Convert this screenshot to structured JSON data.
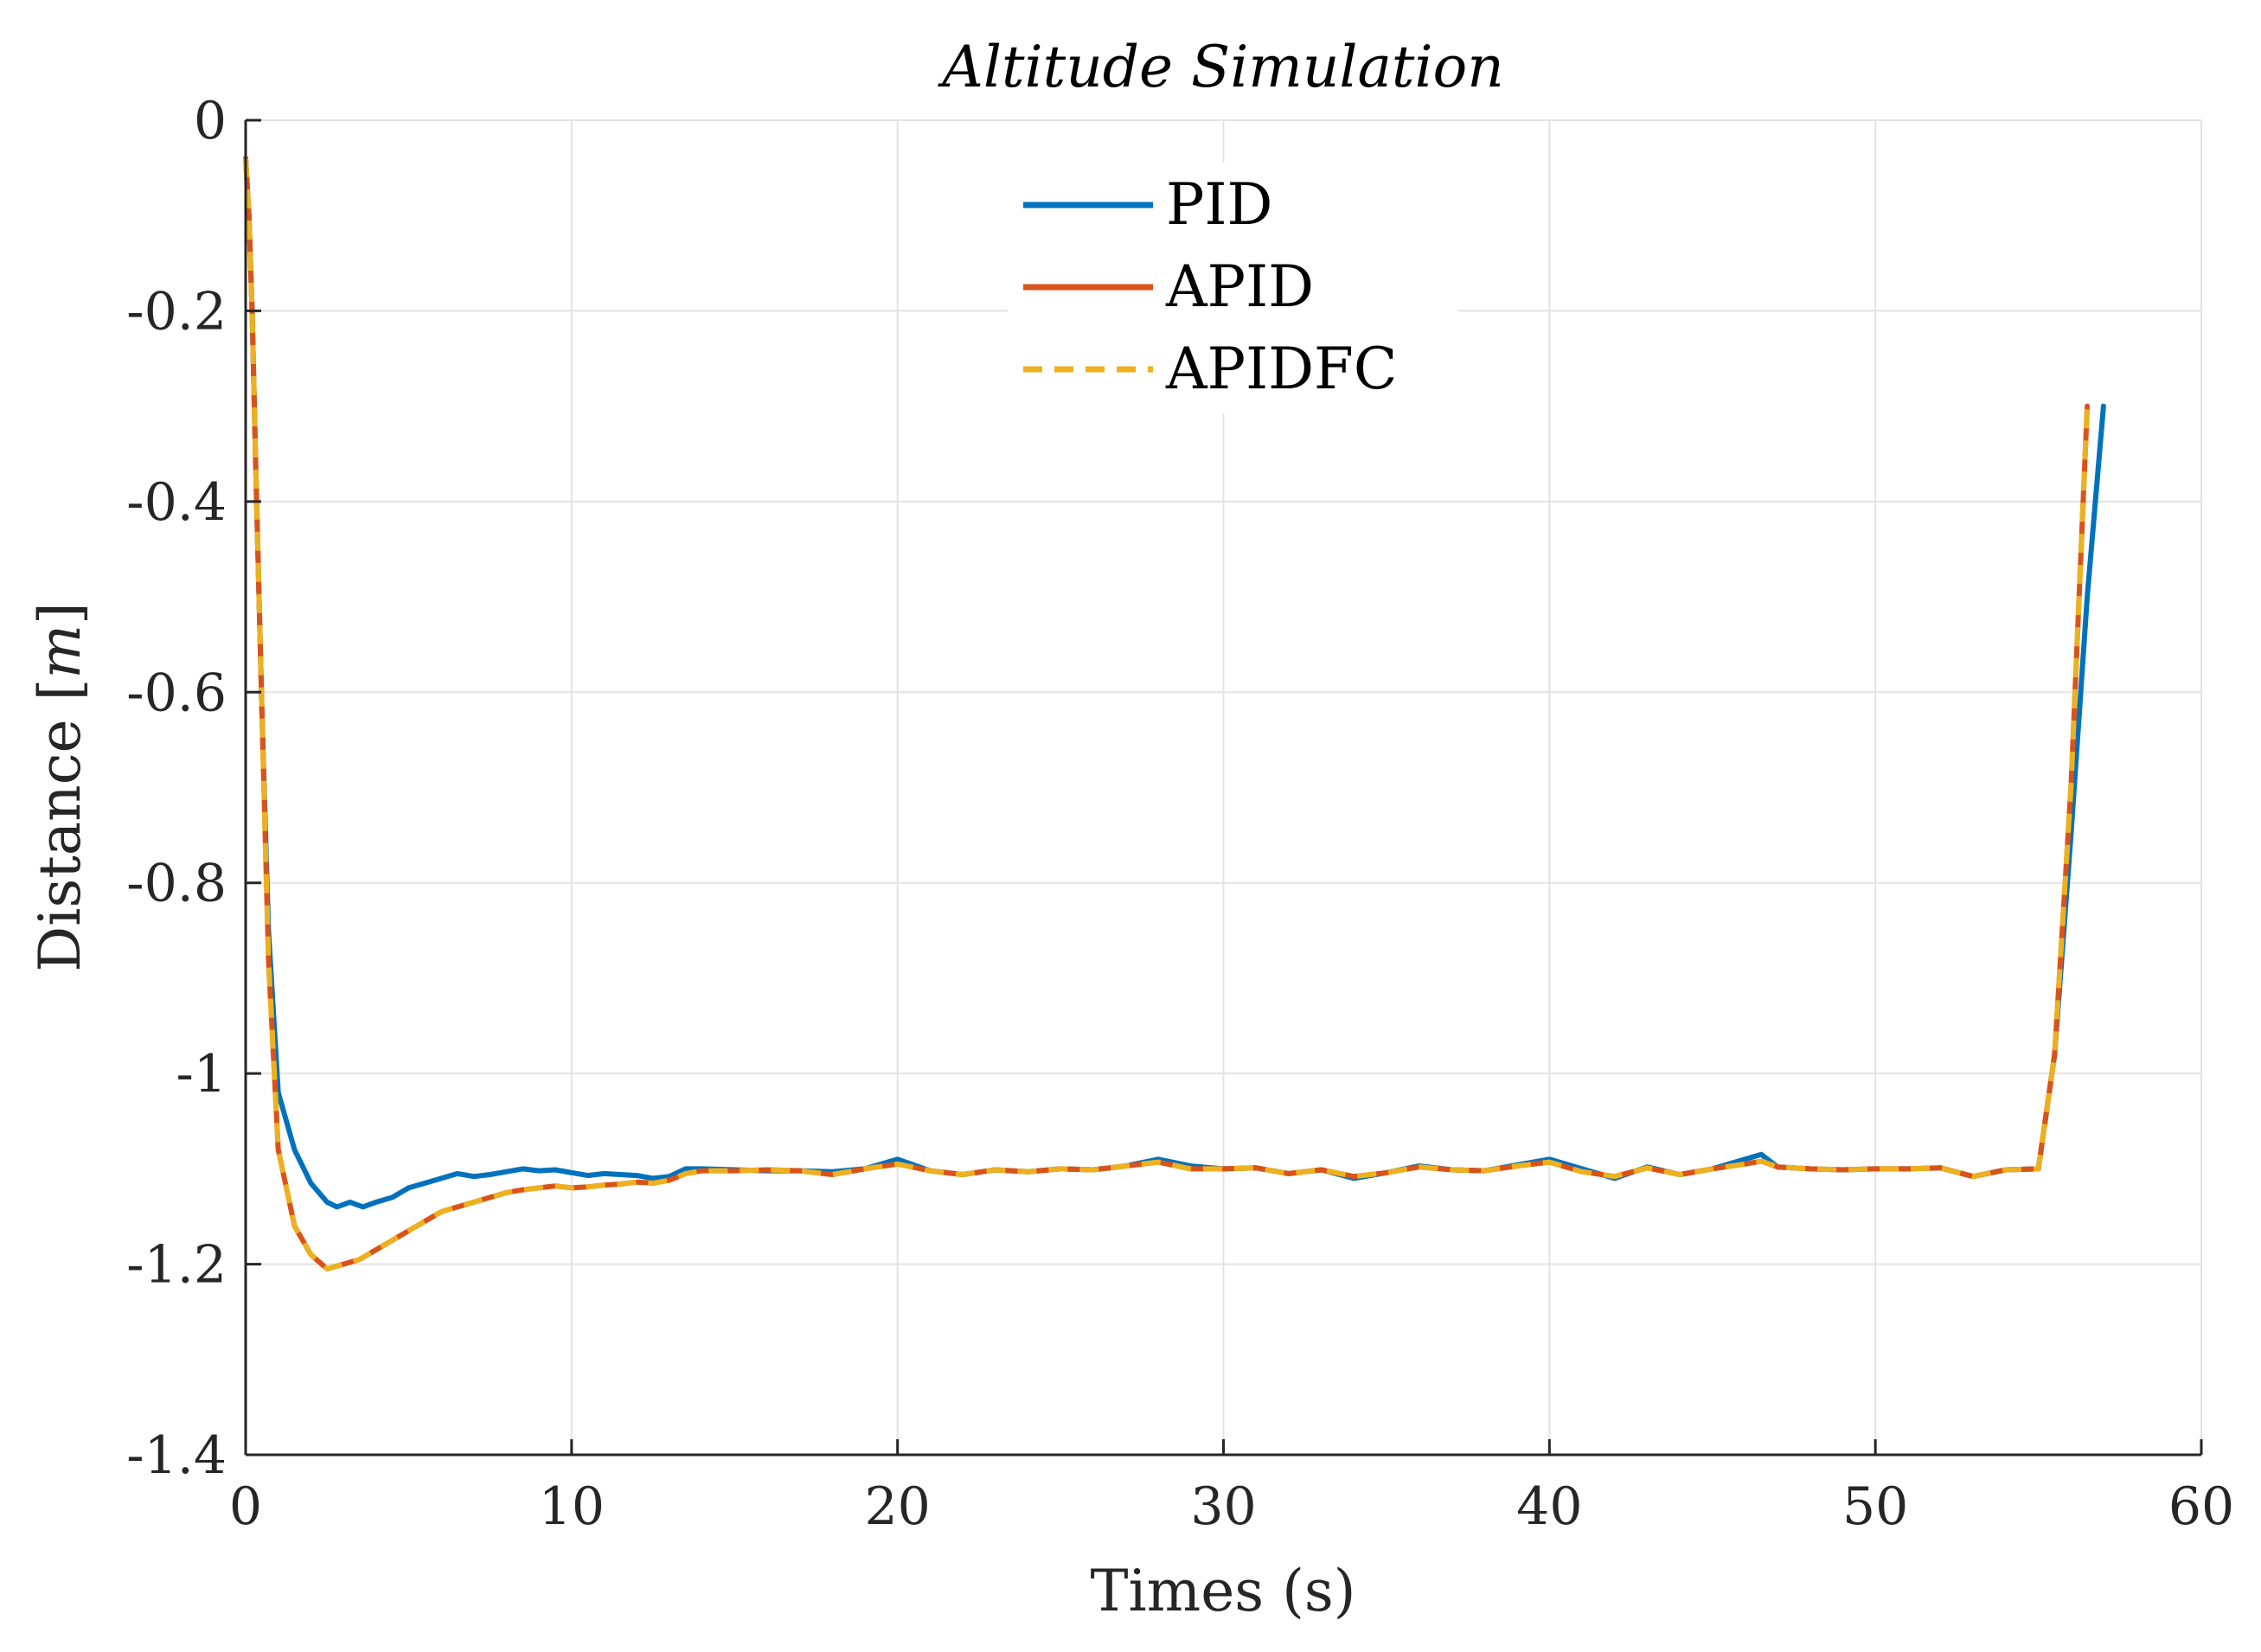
{
  "chart_data": {
    "type": "line",
    "title": "Altitude Simulation",
    "xlabel": "Times (s)",
    "ylabel_prefix": "Distance [",
    "ylabel_unit": "m",
    "ylabel_suffix": "]",
    "xlim": [
      0,
      60
    ],
    "ylim": [
      -1.4,
      0
    ],
    "xticks": [
      0,
      10,
      20,
      30,
      40,
      50,
      60
    ],
    "xtick_labels": [
      "0",
      "10",
      "20",
      "30",
      "40",
      "50",
      "60"
    ],
    "yticks": [
      0,
      -0.2,
      -0.4,
      -0.6,
      -0.8,
      -1,
      -1.2,
      -1.4
    ],
    "ytick_labels": [
      "0",
      "-0.2",
      "-0.4",
      "-0.6",
      "-0.8",
      "-1",
      "-1.2",
      "-1.4"
    ],
    "grid": true,
    "legend_position": "top-center",
    "series": [
      {
        "name": "PID",
        "color": "#0072BD",
        "dash": "solid",
        "x": [
          0.0,
          0.1,
          0.2,
          0.3,
          0.5,
          0.7,
          1.0,
          1.5,
          2.0,
          2.5,
          2.8,
          3.2,
          3.6,
          4.0,
          4.5,
          5.0,
          5.5,
          6.0,
          6.5,
          7.0,
          7.5,
          8.0,
          8.5,
          9.0,
          9.5,
          10.0,
          10.5,
          11.0,
          11.5,
          12.0,
          12.5,
          13.0,
          13.5,
          14.0,
          15.0,
          16.0,
          17.0,
          18.0,
          19.0,
          20.0,
          21.0,
          22.0,
          23.0,
          24.0,
          25.0,
          26.0,
          27.0,
          28.0,
          29.0,
          30.0,
          31.0,
          32.0,
          33.0,
          34.0,
          35.0,
          36.0,
          37.0,
          38.0,
          39.0,
          40.0,
          41.0,
          42.0,
          43.0,
          44.0,
          45.0,
          46.0,
          46.5,
          47.0,
          48.0,
          49.0,
          50.0,
          51.0,
          52.0,
          53.0,
          54.0,
          55.0,
          55.5,
          56.0,
          56.5,
          57.0
        ],
        "y": [
          -0.04,
          -0.1,
          -0.2,
          -0.35,
          -0.62,
          -0.85,
          -1.02,
          -1.08,
          -1.115,
          -1.135,
          -1.14,
          -1.135,
          -1.14,
          -1.135,
          -1.13,
          -1.12,
          -1.115,
          -1.11,
          -1.105,
          -1.108,
          -1.106,
          -1.103,
          -1.1,
          -1.102,
          -1.101,
          -1.104,
          -1.107,
          -1.105,
          -1.106,
          -1.107,
          -1.11,
          -1.108,
          -1.1,
          -1.1,
          -1.101,
          -1.102,
          -1.102,
          -1.103,
          -1.1,
          -1.09,
          -1.102,
          -1.106,
          -1.101,
          -1.103,
          -1.1,
          -1.101,
          -1.097,
          -1.09,
          -1.097,
          -1.1,
          -1.099,
          -1.105,
          -1.101,
          -1.11,
          -1.104,
          -1.097,
          -1.101,
          -1.102,
          -1.096,
          -1.09,
          -1.1,
          -1.11,
          -1.098,
          -1.106,
          -1.1,
          -1.09,
          -1.085,
          -1.098,
          -1.1,
          -1.101,
          -1.1,
          -1.1,
          -1.099,
          -1.108,
          -1.101,
          -1.1,
          -0.98,
          -0.75,
          -0.5,
          -0.3
        ]
      },
      {
        "name": "APID",
        "color": "#D95319",
        "dash": "solid",
        "x": [
          0.0,
          0.1,
          0.2,
          0.3,
          0.5,
          0.7,
          1.0,
          1.5,
          2.0,
          2.5,
          3.0,
          3.5,
          4.0,
          4.5,
          5.0,
          5.5,
          6.0,
          6.5,
          7.0,
          7.5,
          8.0,
          8.5,
          9.0,
          9.5,
          10.0,
          10.5,
          11.0,
          11.5,
          12.0,
          12.5,
          13.0,
          13.5,
          14.0,
          15.0,
          16.0,
          17.0,
          18.0,
          19.0,
          20.0,
          21.0,
          22.0,
          23.0,
          24.0,
          25.0,
          26.0,
          27.0,
          28.0,
          29.0,
          30.0,
          31.0,
          32.0,
          33.0,
          34.0,
          35.0,
          36.0,
          37.0,
          38.0,
          39.0,
          40.0,
          41.0,
          42.0,
          43.0,
          44.0,
          45.0,
          46.0,
          46.5,
          47.0,
          48.0,
          49.0,
          50.0,
          51.0,
          52.0,
          53.0,
          54.0,
          55.0,
          55.5,
          56.0,
          56.5
        ],
        "y": [
          -0.04,
          -0.1,
          -0.2,
          -0.35,
          -0.62,
          -0.88,
          -1.08,
          -1.16,
          -1.19,
          -1.205,
          -1.2,
          -1.195,
          -1.185,
          -1.175,
          -1.165,
          -1.155,
          -1.145,
          -1.14,
          -1.135,
          -1.13,
          -1.125,
          -1.122,
          -1.12,
          -1.118,
          -1.12,
          -1.119,
          -1.117,
          -1.116,
          -1.114,
          -1.115,
          -1.112,
          -1.105,
          -1.102,
          -1.102,
          -1.101,
          -1.102,
          -1.106,
          -1.1,
          -1.095,
          -1.102,
          -1.106,
          -1.101,
          -1.103,
          -1.1,
          -1.101,
          -1.097,
          -1.093,
          -1.1,
          -1.1,
          -1.099,
          -1.105,
          -1.101,
          -1.108,
          -1.104,
          -1.098,
          -1.101,
          -1.102,
          -1.097,
          -1.093,
          -1.103,
          -1.108,
          -1.099,
          -1.106,
          -1.1,
          -1.095,
          -1.092,
          -1.098,
          -1.1,
          -1.101,
          -1.1,
          -1.1,
          -1.099,
          -1.108,
          -1.101,
          -1.1,
          -0.98,
          -0.7,
          -0.3
        ]
      },
      {
        "name": "APIDFC",
        "color": "#EDB120",
        "dash": "dashed",
        "x": [
          0.0,
          0.1,
          0.2,
          0.3,
          0.5,
          0.7,
          1.0,
          1.5,
          2.0,
          2.5,
          3.0,
          3.5,
          4.0,
          4.5,
          5.0,
          5.5,
          6.0,
          6.5,
          7.0,
          7.5,
          8.0,
          8.5,
          9.0,
          9.5,
          10.0,
          10.5,
          11.0,
          11.5,
          12.0,
          12.5,
          13.0,
          13.5,
          14.0,
          15.0,
          16.0,
          17.0,
          18.0,
          19.0,
          20.0,
          21.0,
          22.0,
          23.0,
          24.0,
          25.0,
          26.0,
          27.0,
          28.0,
          29.0,
          30.0,
          31.0,
          32.0,
          33.0,
          34.0,
          35.0,
          36.0,
          37.0,
          38.0,
          39.0,
          40.0,
          41.0,
          42.0,
          43.0,
          44.0,
          45.0,
          46.0,
          46.5,
          47.0,
          48.0,
          49.0,
          50.0,
          51.0,
          52.0,
          53.0,
          54.0,
          55.0,
          55.5,
          56.0,
          56.5
        ],
        "y": [
          -0.04,
          -0.1,
          -0.2,
          -0.35,
          -0.62,
          -0.88,
          -1.08,
          -1.16,
          -1.19,
          -1.205,
          -1.2,
          -1.195,
          -1.185,
          -1.175,
          -1.165,
          -1.155,
          -1.145,
          -1.14,
          -1.135,
          -1.13,
          -1.125,
          -1.122,
          -1.12,
          -1.118,
          -1.12,
          -1.119,
          -1.117,
          -1.116,
          -1.114,
          -1.115,
          -1.112,
          -1.105,
          -1.102,
          -1.102,
          -1.101,
          -1.102,
          -1.106,
          -1.1,
          -1.095,
          -1.102,
          -1.106,
          -1.101,
          -1.103,
          -1.1,
          -1.101,
          -1.097,
          -1.093,
          -1.1,
          -1.1,
          -1.099,
          -1.105,
          -1.101,
          -1.108,
          -1.104,
          -1.098,
          -1.101,
          -1.102,
          -1.097,
          -1.093,
          -1.103,
          -1.108,
          -1.099,
          -1.106,
          -1.1,
          -1.095,
          -1.092,
          -1.098,
          -1.1,
          -1.101,
          -1.1,
          -1.1,
          -1.099,
          -1.108,
          -1.101,
          -1.1,
          -0.98,
          -0.7,
          -0.3
        ]
      }
    ]
  }
}
